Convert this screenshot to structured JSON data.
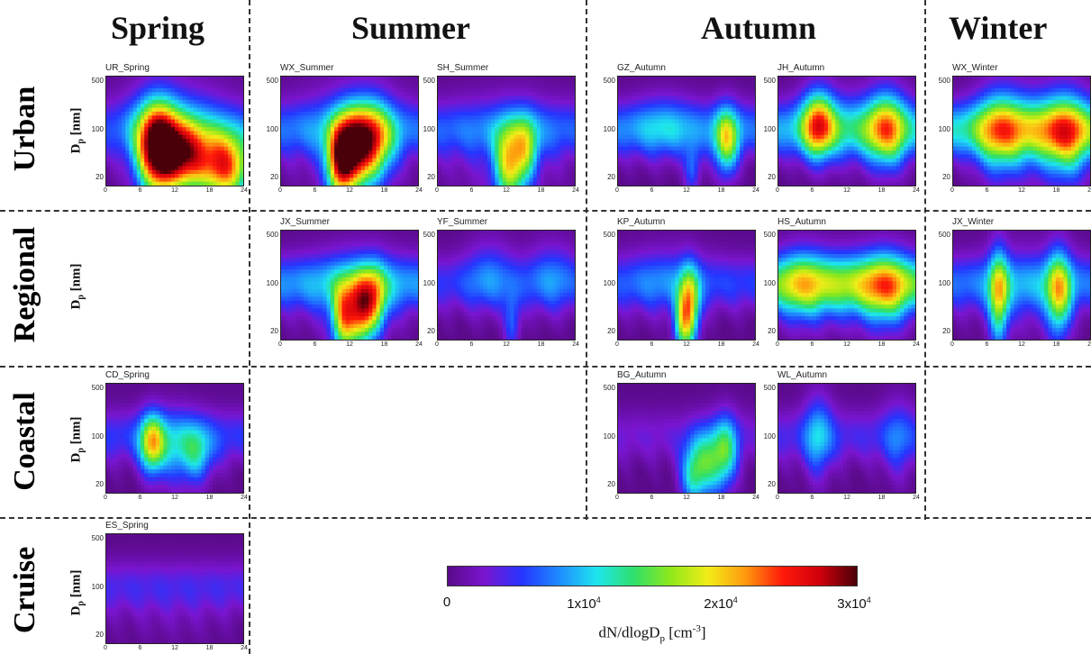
{
  "chart_data": {
    "type": "heatmap",
    "seasons": [
      "Spring",
      "Summer",
      "Autumn",
      "Winter"
    ],
    "categories": [
      {
        "name": "Urban",
        "color": "#b3262a"
      },
      {
        "name": "Regional",
        "color": "#c8a431"
      },
      {
        "name": "Coastal",
        "color": "#1f9a4f"
      },
      {
        "name": "Cruise",
        "color": "#2a6db3"
      }
    ],
    "ylabel": "D",
    "ylabel_sub": "p",
    "ylabel_unit": "[nm]",
    "yticks": [
      "500",
      "100",
      "20"
    ],
    "xticks": [
      "0",
      "6",
      "12",
      "18",
      "24"
    ],
    "xlim": [
      0,
      24
    ],
    "ylim": [
      15,
      600
    ],
    "colorbar": {
      "label_main": "dN/dlogD",
      "label_sub": "p",
      "label_unit": " [cm",
      "label_unit_exp": "-3",
      "label_close": "]",
      "range": [
        0,
        30000
      ],
      "ticks": [
        {
          "value": 0,
          "mantissa": "0",
          "exp": ""
        },
        {
          "value": 10000,
          "mantissa": "1x10",
          "exp": "4"
        },
        {
          "value": 20000,
          "mantissa": "2x10",
          "exp": "4"
        },
        {
          "value": 30000,
          "mantissa": "3x10",
          "exp": "4"
        }
      ],
      "colormap": [
        "#5a0a8a",
        "#7a15d0",
        "#2535ff",
        "#1f8cff",
        "#1ee5ee",
        "#2ee06a",
        "#8fe81a",
        "#f2ec18",
        "#ff9a0e",
        "#ff1a0a",
        "#d1000c",
        "#4a0008"
      ]
    },
    "panels": [
      {
        "site": "UR_Spring",
        "season": "Spring",
        "category": "Urban",
        "base": 4.4,
        "blobs": [
          {
            "t": 9,
            "d": 50,
            "st": 2.5,
            "sd": 0.45,
            "a": 28
          },
          {
            "t": 14,
            "d": 38,
            "st": 3,
            "sd": 0.35,
            "a": 20
          },
          {
            "t": 21,
            "d": 28,
            "st": 3,
            "sd": 0.35,
            "a": 22
          },
          {
            "t": 12,
            "d": 100,
            "st": 7,
            "sd": 0.5,
            "a": 6
          }
        ]
      },
      {
        "site": "WX_Summer",
        "season": "Summer",
        "category": "Urban",
        "base": 6.2,
        "blobs": [
          {
            "t": 12,
            "d": 45,
            "st": 2.2,
            "sd": 0.4,
            "a": 23
          },
          {
            "t": 16,
            "d": 65,
            "st": 2.5,
            "sd": 0.4,
            "a": 17
          },
          {
            "t": 10,
            "d": 28,
            "st": 1.5,
            "sd": 0.35,
            "a": 12
          },
          {
            "t": 12,
            "d": 80,
            "st": 7,
            "sd": 0.6,
            "a": 4
          }
        ]
      },
      {
        "site": "SH_Summer",
        "season": "Summer",
        "category": "Urban",
        "base": 5.8,
        "blobs": [
          {
            "t": 12.5,
            "d": 30,
            "st": 1.8,
            "sd": 0.4,
            "a": 16
          },
          {
            "t": 15.5,
            "d": 50,
            "st": 1.5,
            "sd": 0.35,
            "a": 10
          },
          {
            "t": 12,
            "d": 50,
            "st": 8,
            "sd": 0.6,
            "a": 3
          }
        ]
      },
      {
        "site": "GZ_Autumn",
        "season": "Autumn",
        "category": "Urban",
        "base": 7.2,
        "blobs": [
          {
            "t": 19,
            "d": 65,
            "st": 1.5,
            "sd": 0.35,
            "a": 14
          },
          {
            "t": 13,
            "d": 25,
            "st": 1,
            "sd": 0.25,
            "a": 6
          },
          {
            "t": 8,
            "d": 110,
            "st": 4,
            "sd": 0.35,
            "a": 4
          }
        ]
      },
      {
        "site": "JH_Autumn",
        "season": "Autumn",
        "category": "Urban",
        "base": 8.5,
        "blobs": [
          {
            "t": 7,
            "d": 120,
            "st": 2,
            "sd": 0.35,
            "a": 16
          },
          {
            "t": 19,
            "d": 100,
            "st": 2.5,
            "sd": 0.4,
            "a": 14
          },
          {
            "t": 12,
            "d": 110,
            "st": 6,
            "sd": 0.4,
            "a": 4
          }
        ]
      },
      {
        "site": "WX_Winter",
        "season": "Winter",
        "category": "Urban",
        "base": 11,
        "blobs": [
          {
            "t": 8,
            "d": 90,
            "st": 3,
            "sd": 0.45,
            "a": 12
          },
          {
            "t": 20,
            "d": 80,
            "st": 3,
            "sd": 0.45,
            "a": 14
          },
          {
            "t": 14,
            "d": 90,
            "st": 4,
            "sd": 0.45,
            "a": 6
          }
        ]
      },
      {
        "site": "JX_Summer",
        "season": "Summer",
        "category": "Regional",
        "base": 7.8,
        "blobs": [
          {
            "t": 11,
            "d": 30,
            "st": 1.5,
            "sd": 0.35,
            "a": 17
          },
          {
            "t": 14,
            "d": 40,
            "st": 1.5,
            "sd": 0.35,
            "a": 17
          },
          {
            "t": 16.5,
            "d": 55,
            "st": 1.5,
            "sd": 0.35,
            "a": 12
          },
          {
            "t": 13,
            "d": 70,
            "st": 6,
            "sd": 0.5,
            "a": 4
          }
        ]
      },
      {
        "site": "YF_Summer",
        "season": "Summer",
        "category": "Regional",
        "base": 5,
        "blobs": [
          {
            "t": 13,
            "d": 25,
            "st": 1,
            "sd": 0.3,
            "a": 6
          },
          {
            "t": 9,
            "d": 140,
            "st": 3,
            "sd": 0.4,
            "a": 4
          },
          {
            "t": 20,
            "d": 130,
            "st": 3,
            "sd": 0.4,
            "a": 4
          }
        ]
      },
      {
        "site": "KP_Autumn",
        "season": "Autumn",
        "category": "Regional",
        "base": 5.5,
        "blobs": [
          {
            "t": 12.5,
            "d": 40,
            "st": 1.2,
            "sd": 0.4,
            "a": 18
          },
          {
            "t": 11,
            "d": 25,
            "st": 1,
            "sd": 0.3,
            "a": 9
          },
          {
            "t": 8,
            "d": 110,
            "st": 5,
            "sd": 0.4,
            "a": 3
          }
        ]
      },
      {
        "site": "HS_Autumn",
        "season": "Autumn",
        "category": "Regional",
        "base": 12,
        "blobs": [
          {
            "t": 4,
            "d": 90,
            "st": 3,
            "sd": 0.4,
            "a": 8
          },
          {
            "t": 19,
            "d": 80,
            "st": 3,
            "sd": 0.4,
            "a": 11
          },
          {
            "t": 12,
            "d": 85,
            "st": 5,
            "sd": 0.4,
            "a": 5
          }
        ]
      },
      {
        "site": "JX_Winter",
        "season": "Winter",
        "category": "Regional",
        "base": 6.8,
        "blobs": [
          {
            "t": 8,
            "d": 60,
            "st": 1.2,
            "sd": 0.5,
            "a": 14
          },
          {
            "t": 18.5,
            "d": 70,
            "st": 1.5,
            "sd": 0.45,
            "a": 14
          },
          {
            "t": 13,
            "d": 80,
            "st": 6,
            "sd": 0.5,
            "a": 3
          }
        ]
      },
      {
        "site": "CD_Spring",
        "season": "Spring",
        "category": "Coastal",
        "base": 5.2,
        "blobs": [
          {
            "t": 8,
            "d": 80,
            "st": 1.5,
            "sd": 0.3,
            "a": 15
          },
          {
            "t": 12,
            "d": 60,
            "st": 3,
            "sd": 0.4,
            "a": 6
          },
          {
            "t": 16,
            "d": 55,
            "st": 2,
            "sd": 0.3,
            "a": 7
          }
        ]
      },
      {
        "site": "BG_Autumn",
        "season": "Autumn",
        "category": "Coastal",
        "base": 3,
        "blobs": [
          {
            "t": 16,
            "d": 40,
            "st": 2.5,
            "sd": 0.35,
            "a": 12
          },
          {
            "t": 13,
            "d": 25,
            "st": 1.5,
            "sd": 0.3,
            "a": 8
          },
          {
            "t": 19,
            "d": 70,
            "st": 1.5,
            "sd": 0.35,
            "a": 8
          }
        ]
      },
      {
        "site": "WL_Autumn",
        "season": "Autumn",
        "category": "Coastal",
        "base": 4.2,
        "blobs": [
          {
            "t": 7,
            "d": 100,
            "st": 1.8,
            "sd": 0.45,
            "a": 7
          },
          {
            "t": 21,
            "d": 90,
            "st": 2,
            "sd": 0.45,
            "a": 4
          }
        ]
      },
      {
        "site": "ES_Spring",
        "season": "Spring",
        "category": "Cruise",
        "base": 4.2,
        "blobs": [
          {
            "t": 12,
            "d": 30,
            "st": 8,
            "sd": 0.3,
            "a": 1
          }
        ]
      }
    ]
  }
}
